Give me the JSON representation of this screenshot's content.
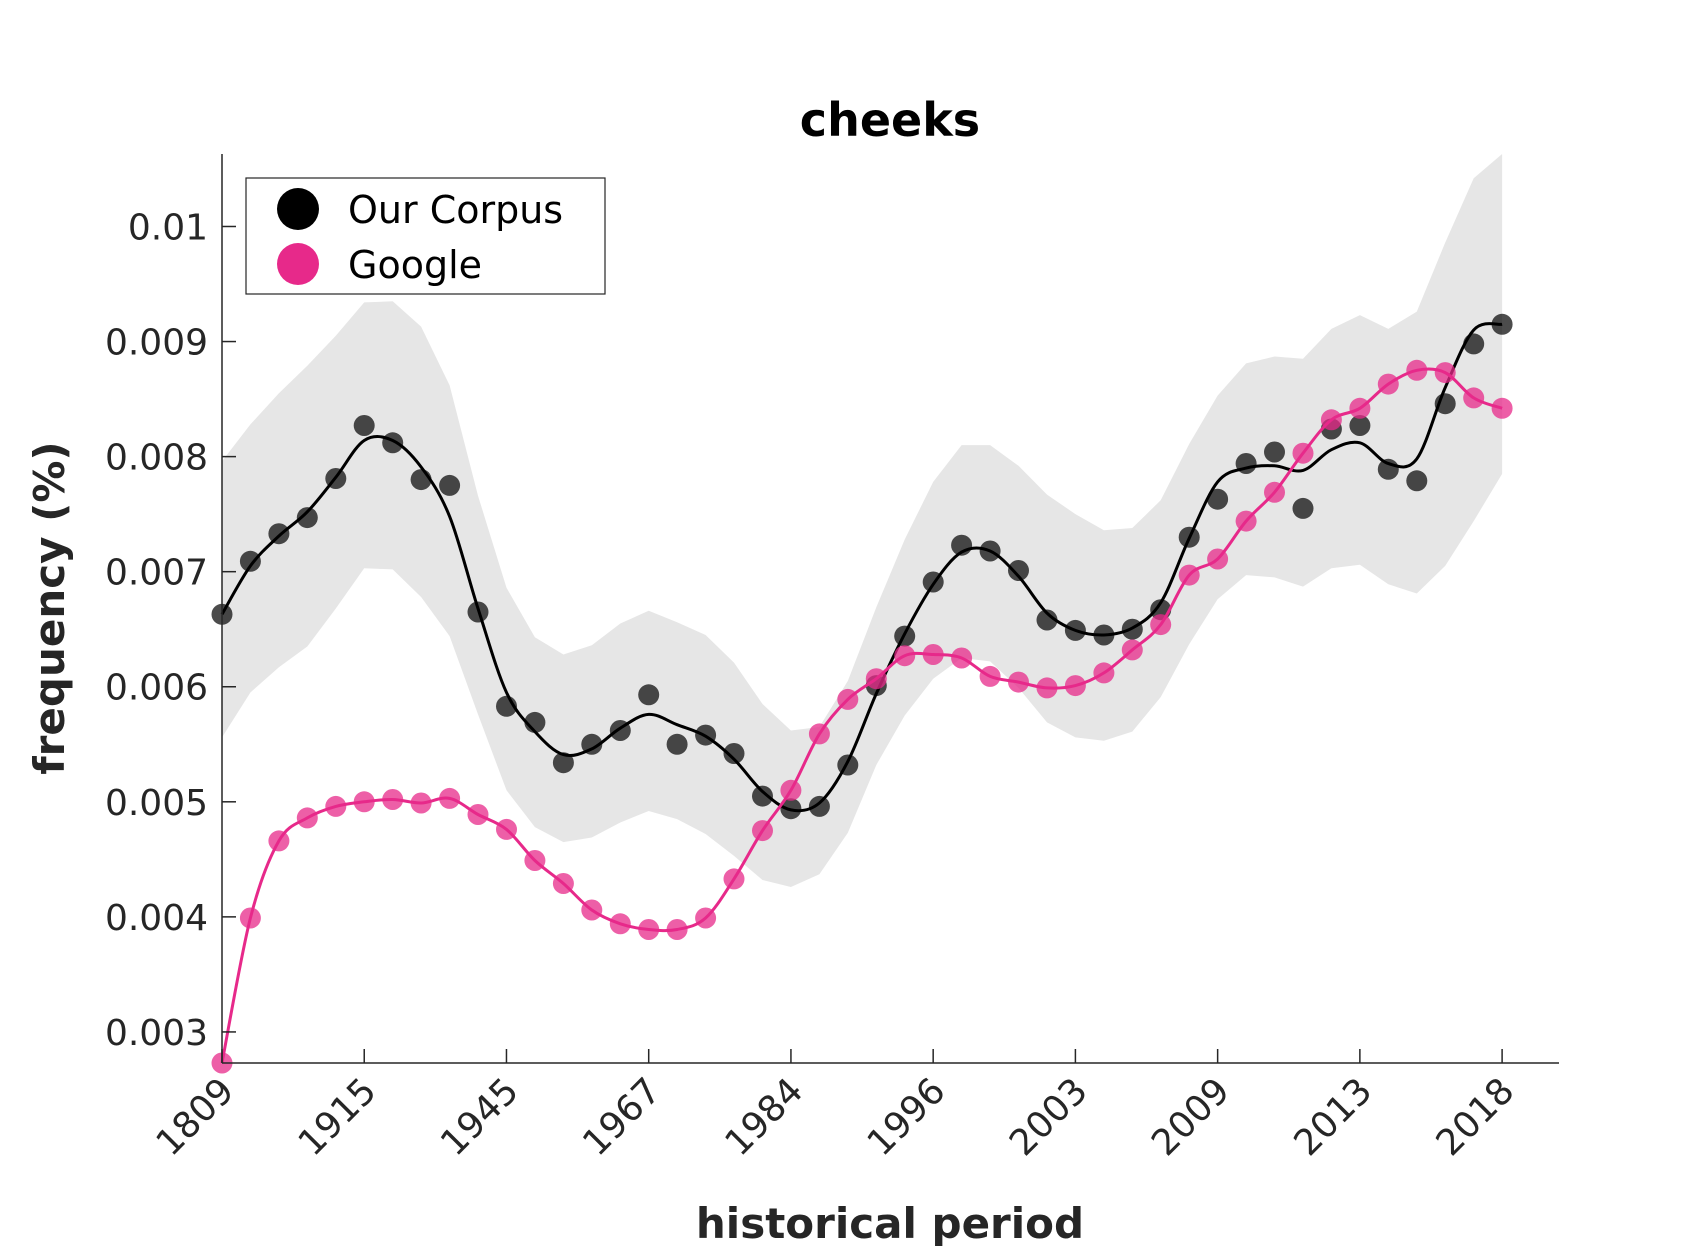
{
  "chart_data": {
    "type": "line",
    "title": "cheeks",
    "xlabel": "historical period",
    "ylabel": "frequency (%)",
    "ylim": [
      0.00273,
      0.01063
    ],
    "y_ticks": [
      "0.003",
      "0.004",
      "0.005",
      "0.006",
      "0.007",
      "0.008",
      "0.009",
      "0.01"
    ],
    "y_tick_values": [
      0.003,
      0.004,
      0.005,
      0.006,
      0.007,
      0.008,
      0.009,
      0.01
    ],
    "x_tick_labels": [
      "1809",
      "1915",
      "1945",
      "1967",
      "1984",
      "1996",
      "2003",
      "2009",
      "2013",
      "2018"
    ],
    "x_tick_positions": [
      1,
      6,
      11,
      16,
      21,
      26,
      31,
      36,
      41,
      46
    ],
    "xlim": [
      1,
      48
    ],
    "grid": false,
    "legend_position": "top-left",
    "series": [
      {
        "name": "Our Corpus",
        "color": "#000000",
        "points": [
          0.00663,
          0.00709,
          0.00733,
          0.00747,
          0.00781,
          0.00827,
          0.00812,
          0.0078,
          0.00775,
          0.00665,
          0.00583,
          0.00569,
          0.00534,
          0.0055,
          0.00562,
          0.00593,
          0.0055,
          0.00558,
          0.00542,
          0.00505,
          0.00494,
          0.00496,
          0.00532,
          0.00601,
          0.00644,
          0.00691,
          0.00723,
          0.00718,
          0.00701,
          0.00658,
          0.00649,
          0.00645,
          0.0065,
          0.00667,
          0.0073,
          0.00763,
          0.00794,
          0.00804,
          0.00755,
          0.00824,
          0.00827,
          0.00789,
          0.00779,
          0.00846,
          0.00898,
          0.00915
        ],
        "smoothed": [
          0.00663,
          0.00705,
          0.00731,
          0.00752,
          0.00782,
          0.00814,
          0.00814,
          0.00791,
          0.00748,
          0.00668,
          0.00595,
          0.00561,
          0.00541,
          0.00546,
          0.00564,
          0.00576,
          0.00567,
          0.00557,
          0.00537,
          0.00509,
          0.00493,
          0.00499,
          0.00535,
          0.00594,
          0.00646,
          0.00689,
          0.00717,
          0.00718,
          0.00696,
          0.00664,
          0.00649,
          0.00645,
          0.00651,
          0.00673,
          0.00729,
          0.00778,
          0.0079,
          0.00792,
          0.00788,
          0.00806,
          0.00812,
          0.00794,
          0.00798,
          0.0086,
          0.0091,
          0.00915
        ]
      },
      {
        "name": "Google",
        "color": "#e7298a",
        "points": [
          0.00273,
          0.00399,
          0.00466,
          0.00486,
          0.00496,
          0.005,
          0.00502,
          0.00499,
          0.00503,
          0.00489,
          0.00476,
          0.00449,
          0.00429,
          0.00406,
          0.00394,
          0.00389,
          0.00389,
          0.00399,
          0.00433,
          0.00475,
          0.0051,
          0.00559,
          0.00589,
          0.00607,
          0.00627,
          0.00628,
          0.00625,
          0.00609,
          0.00604,
          0.00599,
          0.00601,
          0.00612,
          0.00632,
          0.00654,
          0.00697,
          0.00711,
          0.00744,
          0.00769,
          0.00803,
          0.00832,
          0.00842,
          0.00863,
          0.00875,
          0.00873,
          0.00851,
          0.00842
        ]
      }
    ],
    "confidence_band": {
      "upper": [
        0.00796,
        0.00828,
        0.00855,
        0.00879,
        0.00905,
        0.00934,
        0.00935,
        0.00913,
        0.00862,
        0.00766,
        0.00686,
        0.00643,
        0.00628,
        0.00636,
        0.00655,
        0.00666,
        0.00656,
        0.00645,
        0.00621,
        0.00585,
        0.00562,
        0.00565,
        0.00605,
        0.00669,
        0.00728,
        0.00778,
        0.0081,
        0.0081,
        0.00792,
        0.00767,
        0.0075,
        0.00736,
        0.00738,
        0.00762,
        0.00811,
        0.00853,
        0.00881,
        0.00887,
        0.00885,
        0.00911,
        0.00923,
        0.00911,
        0.00926,
        0.00986,
        0.01042,
        0.01063
      ],
      "lower": [
        0.00556,
        0.00595,
        0.00617,
        0.00635,
        0.00668,
        0.00703,
        0.00702,
        0.00678,
        0.00644,
        0.00576,
        0.0051,
        0.00478,
        0.00465,
        0.00469,
        0.00482,
        0.00492,
        0.00485,
        0.00472,
        0.00453,
        0.00432,
        0.00426,
        0.00437,
        0.00473,
        0.00532,
        0.00575,
        0.00607,
        0.00625,
        0.00622,
        0.00599,
        0.00569,
        0.00556,
        0.00553,
        0.00561,
        0.00591,
        0.00637,
        0.00676,
        0.00697,
        0.00695,
        0.00687,
        0.00703,
        0.00706,
        0.00689,
        0.00681,
        0.00705,
        0.00744,
        0.00785
      ]
    }
  }
}
